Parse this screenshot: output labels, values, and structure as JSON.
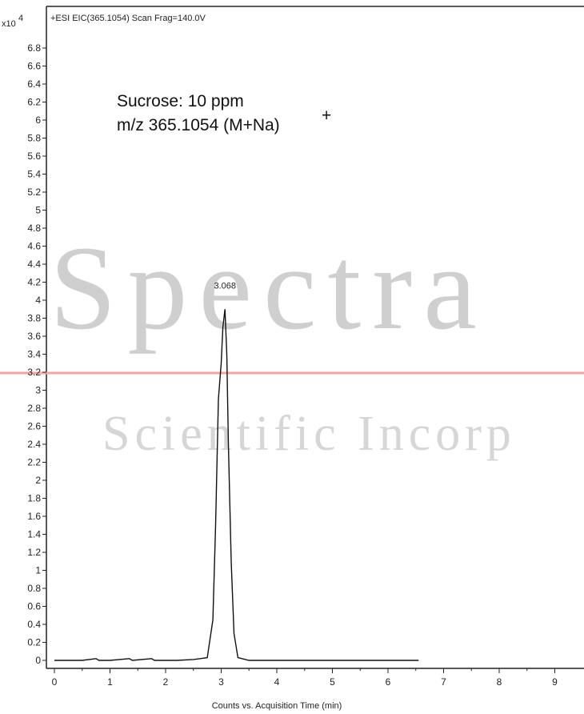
{
  "header": {
    "scale_prefix": "x10",
    "scale_exp": "4",
    "title": "+ESI  EIC(365.1054)  Scan  Frag=140.0V"
  },
  "annotation": {
    "line1": "Sucrose: 10 ppm",
    "line2": "m/z 365.1054 (M+Na)",
    "line2_sup": "+"
  },
  "watermark": {
    "line1": "Spectra",
    "line2": "Scientific Incorp"
  },
  "chart_data": {
    "type": "line",
    "xlabel": "Counts vs. Acquisition Time (min)",
    "ylabel": "",
    "xlim": [
      0,
      9.5
    ],
    "ylim": [
      0,
      6.9
    ],
    "x_ticks": [
      "0",
      "1",
      "2",
      "3",
      "4",
      "5",
      "6",
      "7",
      "8",
      "9"
    ],
    "y_ticks": [
      "0",
      "0.2",
      "0.4",
      "0.6",
      "0.8",
      "1",
      "1.2",
      "1.4",
      "1.6",
      "1.8",
      "2",
      "2.2",
      "2.4",
      "2.6",
      "2.8",
      "3",
      "3.2",
      "3.4",
      "3.6",
      "3.8",
      "4",
      "4.2",
      "4.4",
      "4.6",
      "4.8",
      "5",
      "5.2",
      "5.4",
      "5.6",
      "5.8",
      "6",
      "6.2",
      "6.4",
      "6.6",
      "6.8"
    ],
    "grid": false,
    "peak_label": "3.068",
    "series": [
      {
        "color": "#111111",
        "x": [
          0.0,
          0.5,
          0.75,
          0.8,
          1.0,
          1.35,
          1.4,
          1.75,
          1.8,
          2.2,
          2.5,
          2.75,
          2.85,
          2.9,
          2.95,
          3.0,
          3.03,
          3.068,
          3.1,
          3.13,
          3.18,
          3.23,
          3.3,
          3.5,
          4.0,
          5.0,
          6.0,
          6.55
        ],
        "y": [
          0.0,
          0.0,
          0.02,
          0.0,
          0.0,
          0.02,
          0.0,
          0.02,
          0.0,
          0.0,
          0.01,
          0.03,
          0.45,
          1.5,
          2.9,
          3.3,
          3.7,
          3.9,
          3.4,
          2.4,
          1.1,
          0.3,
          0.03,
          0.0,
          0.0,
          0.0,
          0.0,
          0.0
        ]
      }
    ]
  },
  "colors": {
    "axis": "#222222",
    "trace": "#111111",
    "watermark_line": "#f2a5a5",
    "watermark_text": "#cfcfcf"
  }
}
